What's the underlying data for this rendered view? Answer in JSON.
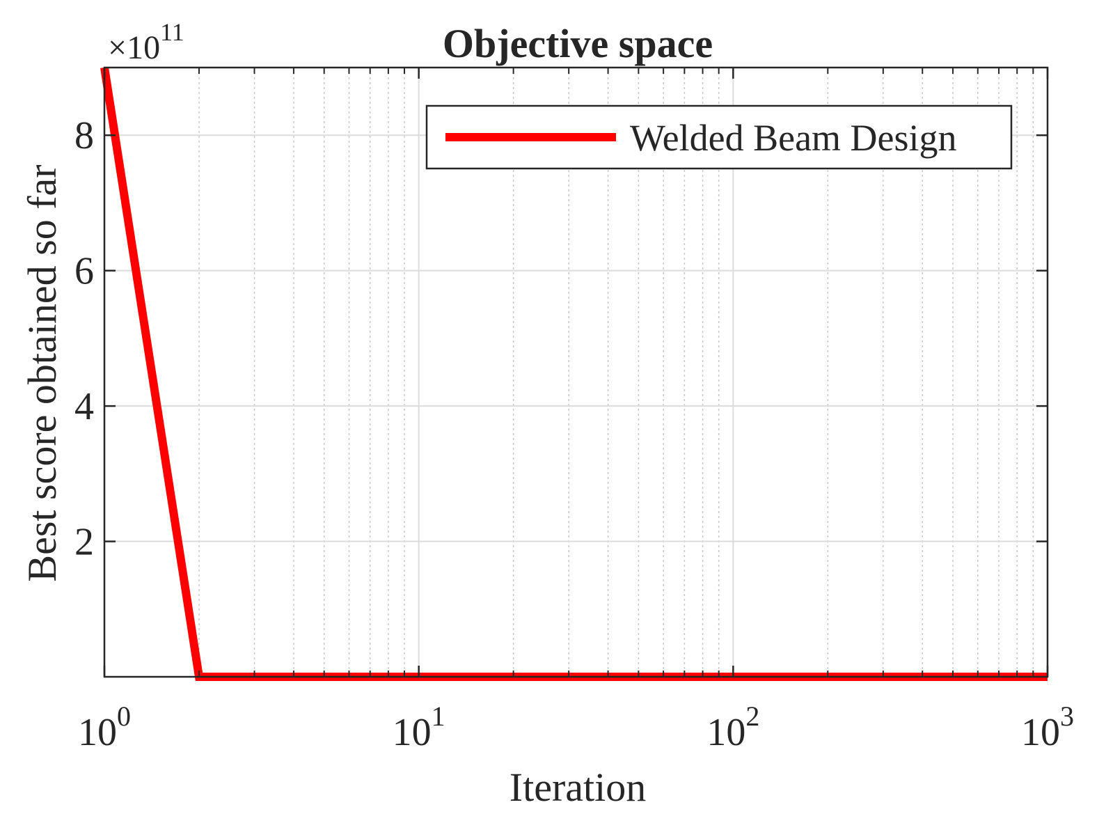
{
  "chart_data": {
    "type": "line",
    "title": "Objective space",
    "xlabel": "Iteration",
    "ylabel": "Best score obtained so far",
    "x_scale": "log",
    "xlim": [
      1,
      1000
    ],
    "ylim": [
      0,
      900000000000.0
    ],
    "y_exponent_base": "×10",
    "y_exponent_power": "11",
    "x_ticks": [
      {
        "value": 1,
        "base": "10",
        "power": "0"
      },
      {
        "value": 10,
        "base": "10",
        "power": "1"
      },
      {
        "value": 100,
        "base": "10",
        "power": "2"
      },
      {
        "value": 1000,
        "base": "10",
        "power": "3"
      }
    ],
    "y_ticks": [
      {
        "value": 200000000000.0,
        "label": "2"
      },
      {
        "value": 400000000000.0,
        "label": "4"
      },
      {
        "value": 600000000000.0,
        "label": "6"
      },
      {
        "value": 800000000000.0,
        "label": "8"
      }
    ],
    "grid": true,
    "minor_grid": true,
    "legend_position": "top-right",
    "series": [
      {
        "name": "Welded Beam Design",
        "color": "#ff0000",
        "x": [
          1,
          2,
          1000
        ],
        "y": [
          900000000000.0,
          1.7,
          1.7
        ]
      }
    ]
  }
}
